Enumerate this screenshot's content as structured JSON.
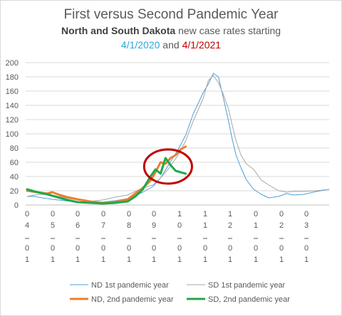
{
  "title": "First versus Second Pandemic Year",
  "subtitle": {
    "bold": "North and South Dakota",
    "rest": " new case rates starting"
  },
  "dates": {
    "first": "4/1/2020",
    "and": " and ",
    "second": "4/1/2021",
    "first_color": "#2ea8d8",
    "second_color": "#c00000"
  },
  "chart_data": {
    "type": "line",
    "title": "First versus Second Pandemic Year",
    "xlabel": "",
    "ylabel": "",
    "ylim": [
      0,
      200
    ],
    "yticks": [
      0,
      20,
      40,
      60,
      80,
      100,
      120,
      140,
      160,
      180,
      200
    ],
    "x_ticks": [
      {
        "top": "0",
        "mid": "4",
        "bottom": "0",
        "last": "1"
      },
      {
        "top": "0",
        "mid": "5",
        "bottom": "0",
        "last": "1"
      },
      {
        "top": "0",
        "mid": "6",
        "bottom": "0",
        "last": "1"
      },
      {
        "top": "0",
        "mid": "7",
        "bottom": "0",
        "last": "1"
      },
      {
        "top": "0",
        "mid": "8",
        "bottom": "0",
        "last": "1"
      },
      {
        "top": "0",
        "mid": "9",
        "bottom": "0",
        "last": "1"
      },
      {
        "top": "1",
        "mid": "0",
        "bottom": "0",
        "last": "1"
      },
      {
        "top": "1",
        "mid": "1",
        "bottom": "0",
        "last": "1"
      },
      {
        "top": "1",
        "mid": "2",
        "bottom": "0",
        "last": "1"
      },
      {
        "top": "0",
        "mid": "1",
        "bottom": "0",
        "last": "1"
      },
      {
        "top": "0",
        "mid": "2",
        "bottom": "0",
        "last": "1"
      },
      {
        "top": "0",
        "mid": "3",
        "bottom": "0",
        "last": "1"
      }
    ],
    "x_range": [
      0,
      12
    ],
    "grid": true,
    "legend_position": "bottom",
    "series": [
      {
        "name": "ND 1st pandemic year",
        "color": "#4a9fd4",
        "width": 1,
        "x": [
          0,
          0.3,
          0.6,
          1.0,
          1.5,
          2.0,
          2.5,
          3.0,
          3.5,
          4.0,
          4.3,
          4.6,
          5.0,
          5.3,
          5.6,
          6.0,
          6.3,
          6.6,
          7.0,
          7.2,
          7.4,
          7.6,
          7.8,
          8.0,
          8.15,
          8.3,
          8.5,
          8.7,
          9.0,
          9.3,
          9.6,
          10.0,
          10.3,
          10.6,
          11.0,
          11.5,
          12.0
        ],
        "y": [
          12,
          12,
          10,
          8,
          6,
          4,
          3,
          4,
          6,
          9,
          13,
          18,
          26,
          38,
          55,
          78,
          98,
          128,
          158,
          170,
          185,
          180,
          150,
          118,
          92,
          70,
          52,
          36,
          22,
          15,
          10,
          12,
          16,
          14,
          15,
          19,
          22
        ]
      },
      {
        "name": "SD 1st pandemic year",
        "color": "#a6a6a6",
        "width": 1,
        "x": [
          0,
          0.3,
          0.6,
          1.0,
          1.5,
          2.0,
          2.5,
          3.0,
          3.5,
          4.0,
          4.3,
          4.6,
          5.0,
          5.3,
          5.6,
          6.0,
          6.3,
          6.6,
          7.0,
          7.2,
          7.4,
          7.6,
          7.8,
          8.0,
          8.15,
          8.3,
          8.5,
          8.7,
          9.0,
          9.3,
          9.6,
          10.0,
          10.3,
          10.6,
          11.0,
          11.5,
          12.0
        ],
        "y": [
          12,
          14,
          15,
          14,
          10,
          7,
          5,
          7,
          11,
          14,
          19,
          24,
          28,
          38,
          50,
          70,
          90,
          118,
          150,
          175,
          182,
          172,
          155,
          135,
          112,
          90,
          70,
          58,
          50,
          35,
          28,
          20,
          18,
          19,
          19,
          20,
          22
        ]
      },
      {
        "name": "ND, 2nd pandemic year",
        "color": "#ed7d31",
        "width": 3,
        "x": [
          0,
          0.4,
          0.8,
          1.0,
          1.3,
          1.6,
          2.0,
          2.5,
          3.0,
          3.5,
          4.0,
          4.3,
          4.6,
          4.9,
          5.1,
          5.3,
          5.5,
          5.7,
          5.9,
          6.1,
          6.3
        ],
        "y": [
          20,
          18,
          16,
          18,
          14,
          11,
          8,
          5,
          3,
          4,
          8,
          16,
          24,
          34,
          46,
          60,
          58,
          66,
          70,
          78,
          82
        ]
      },
      {
        "name": "SD, 2nd pandemic year",
        "color": "#21a84a",
        "width": 3,
        "x": [
          0,
          0.4,
          0.8,
          1.0,
          1.3,
          1.6,
          2.0,
          2.5,
          3.0,
          3.5,
          4.0,
          4.3,
          4.6,
          4.9,
          5.1,
          5.3,
          5.5,
          5.7,
          5.9,
          6.1,
          6.3
        ],
        "y": [
          22,
          18,
          15,
          13,
          10,
          7,
          4,
          3,
          2,
          3,
          5,
          12,
          22,
          40,
          50,
          44,
          66,
          56,
          48,
          46,
          44
        ]
      }
    ],
    "annotation": {
      "type": "ellipse",
      "color": "#c00000",
      "center": [
        5.6,
        54
      ],
      "radius": [
        0.95,
        24
      ]
    }
  }
}
